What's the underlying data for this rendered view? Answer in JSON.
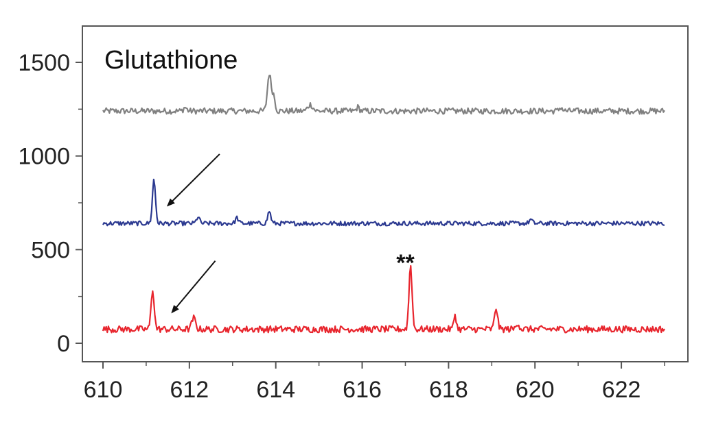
{
  "chart_data": {
    "type": "line",
    "title": "Glutathione",
    "xlabel": "",
    "ylabel": "",
    "xlim": [
      610,
      623
    ],
    "ylim": [
      -100,
      1930
    ],
    "x_ticks": [
      610,
      612,
      614,
      616,
      618,
      620,
      622
    ],
    "y_ticks": [
      0,
      500,
      1000,
      1500
    ],
    "grid": false,
    "legend": "none",
    "series": [
      {
        "color": "#808080",
        "x_start": 610,
        "x_end": 623,
        "baseline": 1240,
        "noise": 16,
        "peaks": [
          {
            "x": 613.85,
            "height": 200,
            "width": 0.06
          },
          {
            "x": 613.95,
            "height": 80,
            "width": 0.05
          },
          {
            "x": 614.8,
            "height": 35,
            "width": 0.08
          },
          {
            "x": 611.9,
            "height": 20,
            "width": 0.05
          },
          {
            "x": 615.9,
            "height": 20,
            "width": 0.05
          },
          {
            "x": 620.6,
            "height": 20,
            "width": 0.05
          }
        ]
      },
      {
        "color": "#2b3990",
        "x_start": 610,
        "x_end": 623,
        "baseline": 640,
        "noise": 12,
        "peaks": [
          {
            "x": 611.18,
            "height": 235,
            "width": 0.05
          },
          {
            "x": 612.2,
            "height": 35,
            "width": 0.05
          },
          {
            "x": 613.1,
            "height": 30,
            "width": 0.05
          },
          {
            "x": 613.85,
            "height": 65,
            "width": 0.05
          },
          {
            "x": 619.9,
            "height": 20,
            "width": 0.05
          }
        ]
      },
      {
        "color": "#e8262e",
        "x_start": 610,
        "x_end": 623,
        "baseline": 75,
        "noise": 18,
        "peaks": [
          {
            "x": 611.15,
            "height": 215,
            "width": 0.05
          },
          {
            "x": 612.1,
            "height": 60,
            "width": 0.06
          },
          {
            "x": 617.12,
            "height": 345,
            "width": 0.05
          },
          {
            "x": 618.15,
            "height": 80,
            "width": 0.04
          },
          {
            "x": 619.1,
            "height": 115,
            "width": 0.05
          },
          {
            "x": 619.6,
            "height": 35,
            "width": 0.05
          }
        ]
      }
    ],
    "annotations": [
      {
        "text": "**",
        "x": 617.0,
        "y": 475
      },
      {
        "type": "arrow",
        "from": [
          612.7,
          1010
        ],
        "to": [
          611.5,
          735
        ]
      },
      {
        "type": "arrow",
        "from": [
          612.6,
          440
        ],
        "to": [
          611.6,
          165
        ]
      }
    ]
  }
}
